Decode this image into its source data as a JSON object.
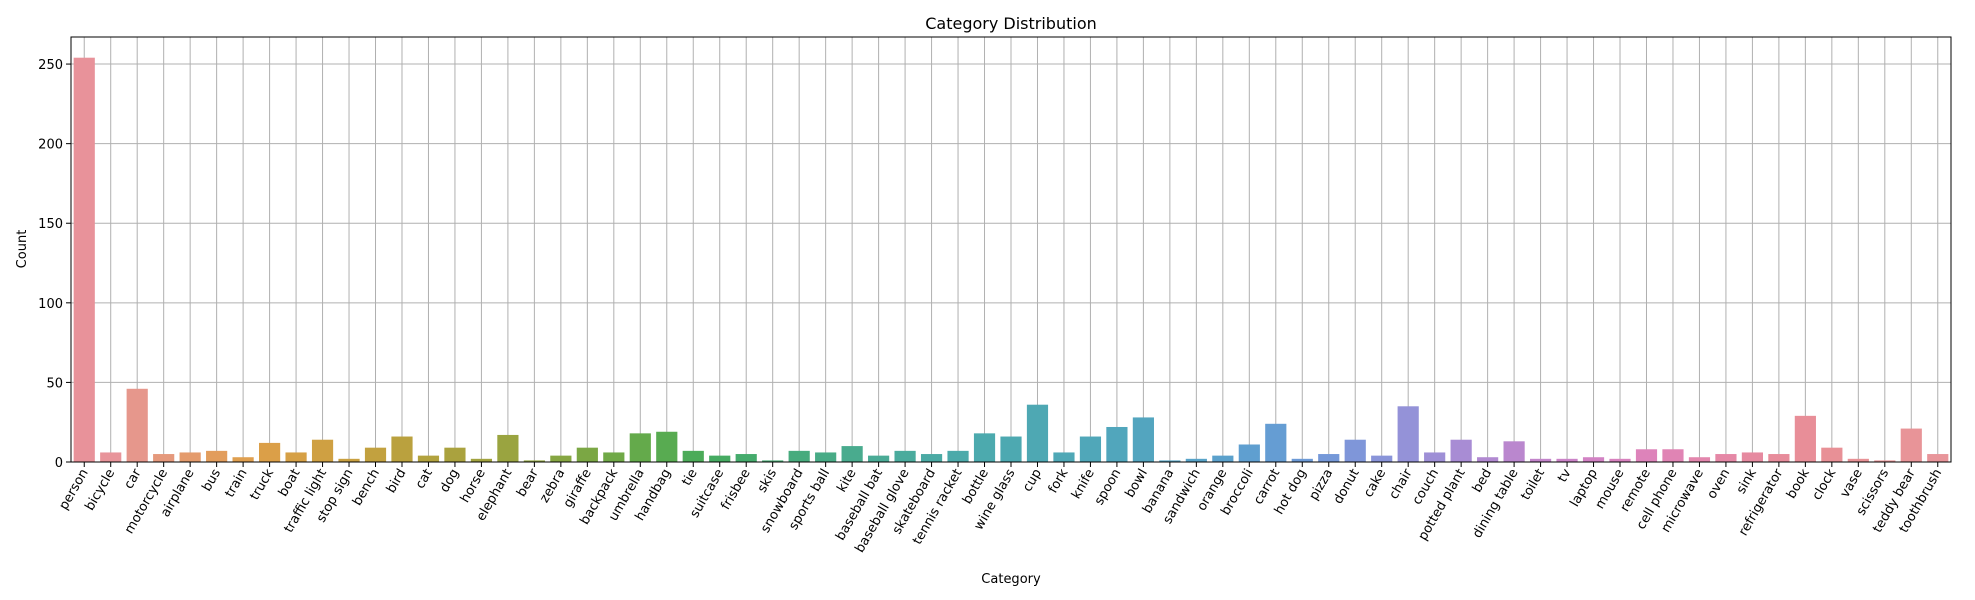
{
  "chart_data": {
    "type": "bar",
    "title": "Category Distribution",
    "xlabel": "Category",
    "ylabel": "Count",
    "ylim": [
      0,
      267
    ],
    "yticks": [
      0,
      50,
      100,
      150,
      200,
      250
    ],
    "grid": true,
    "categories": [
      "person",
      "bicycle",
      "car",
      "motorcycle",
      "airplane",
      "bus",
      "train",
      "truck",
      "boat",
      "traffic light",
      "stop sign",
      "bench",
      "bird",
      "cat",
      "dog",
      "horse",
      "elephant",
      "bear",
      "zebra",
      "giraffe",
      "backpack",
      "umbrella",
      "handbag",
      "tie",
      "suitcase",
      "frisbee",
      "skis",
      "snowboard",
      "sports ball",
      "kite",
      "baseball bat",
      "baseball glove",
      "skateboard",
      "tennis racket",
      "bottle",
      "wine glass",
      "cup",
      "fork",
      "knife",
      "spoon",
      "bowl",
      "banana",
      "sandwich",
      "orange",
      "broccoli",
      "carrot",
      "hot dog",
      "pizza",
      "donut",
      "cake",
      "chair",
      "couch",
      "potted plant",
      "bed",
      "dining table",
      "toilet",
      "tv",
      "laptop",
      "mouse",
      "remote",
      "cell phone",
      "microwave",
      "oven",
      "sink",
      "refrigerator",
      "book",
      "clock",
      "vase",
      "scissors",
      "teddy bear",
      "toothbrush"
    ],
    "values": [
      254,
      6,
      46,
      5,
      6,
      7,
      3,
      12,
      6,
      14,
      2,
      9,
      16,
      4,
      9,
      2,
      17,
      1,
      4,
      9,
      6,
      18,
      19,
      7,
      4,
      5,
      1,
      7,
      6,
      10,
      4,
      7,
      5,
      7,
      18,
      16,
      36,
      6,
      16,
      22,
      28,
      1,
      2,
      4,
      11,
      24,
      2,
      5,
      14,
      4,
      35,
      6,
      14,
      3,
      13,
      2,
      2,
      3,
      2,
      8,
      8,
      3,
      5,
      6,
      5,
      29,
      9,
      2,
      1,
      21,
      5
    ],
    "colors": [
      "#e8929a",
      "#e8949a",
      "#e6978c",
      "#e5997c",
      "#e49b6c",
      "#e29d5c",
      "#df9f4f",
      "#db9f48",
      "#d6a045",
      "#cfa042",
      "#c9a040",
      "#c2a13f",
      "#baa13e",
      "#b2a23e",
      "#aaa23e",
      "#a2a33f",
      "#9aa440",
      "#90a541",
      "#86a642",
      "#7ba744",
      "#70a947",
      "#64aa4b",
      "#58ab51",
      "#4cab59",
      "#46ab62",
      "#45ab6c",
      "#46ab75",
      "#47ab7d",
      "#48ab86",
      "#49ab8e",
      "#4aab96",
      "#4aab9d",
      "#4baaa4",
      "#4caaaa",
      "#4caaae",
      "#4da9b1",
      "#4ea8b3",
      "#4fa8b6",
      "#50a7b9",
      "#51a6bc",
      "#53a5bf",
      "#55a4c3",
      "#58a3c8",
      "#5ba1cc",
      "#5f9fd0",
      "#659dd3",
      "#6c9ad6",
      "#7598d8",
      "#7f96d9",
      "#8994d9",
      "#9492d8",
      "#9e8fd6",
      "#a88cd4",
      "#b189d1",
      "#ba87ce",
      "#c385cb",
      "#cb83c8",
      "#d282c4",
      "#d882bf",
      "#dd83ba",
      "#e084b4",
      "#e386ad",
      "#e588a6",
      "#e68aa0",
      "#e78c9b",
      "#e88e98",
      "#e89096",
      "#e89296",
      "#e89396",
      "#e89498",
      "#e8959a"
    ]
  }
}
